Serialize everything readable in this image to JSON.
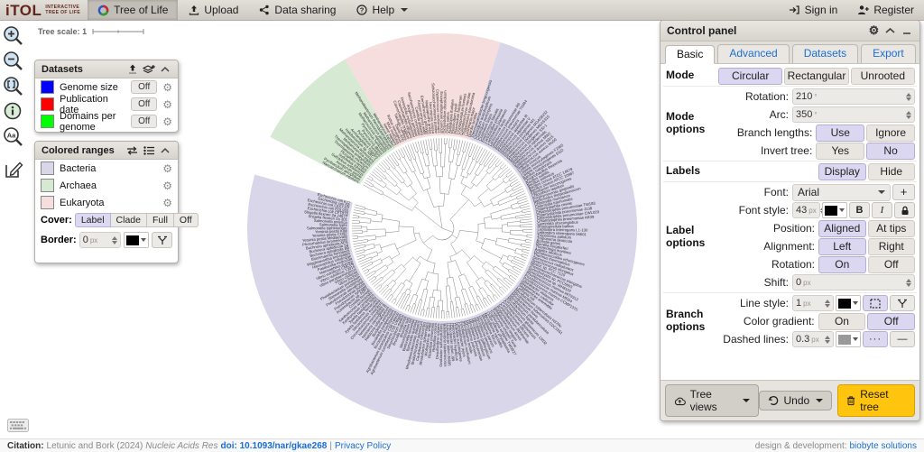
{
  "nav": {
    "logo": {
      "title": "iTOL",
      "subtitle1": "INTERACTIVE",
      "subtitle2": "TREE OF LIFE"
    },
    "menu": [
      {
        "label": "Tree of Life"
      },
      {
        "label": "Upload"
      },
      {
        "label": "Data sharing"
      },
      {
        "label": "Help"
      }
    ],
    "right": [
      {
        "label": "Sign in"
      },
      {
        "label": "Register"
      }
    ]
  },
  "tree_scale": {
    "label": "Tree scale:",
    "value": "1"
  },
  "datasets_panel": {
    "title": "Datasets",
    "items": [
      {
        "color": "#0000ff",
        "label": "Genome size",
        "state": "Off"
      },
      {
        "color": "#ff0000",
        "label": "Publication date",
        "state": "Off"
      },
      {
        "color": "#00ff00",
        "label": "Domains per genome",
        "state": "Off"
      }
    ]
  },
  "colored_ranges_panel": {
    "title": "Colored ranges",
    "ranges": [
      {
        "color": "#d9d6ea",
        "label": "Bacteria"
      },
      {
        "color": "#d5e9d3",
        "label": "Archaea"
      },
      {
        "color": "#f6dede",
        "label": "Eukaryota"
      }
    ],
    "cover": {
      "label": "Cover:",
      "options": [
        "Label",
        "Clade",
        "Full",
        "Off"
      ],
      "selected": "Label"
    },
    "border": {
      "label": "Border:",
      "value": "0",
      "unit": "px",
      "color": "#000000"
    }
  },
  "control_panel": {
    "title": "Control panel",
    "tabs": [
      "Basic",
      "Advanced",
      "Datasets",
      "Export"
    ],
    "active_tab": "Basic",
    "mode": {
      "label": "Mode",
      "options": [
        "Circular",
        "Rectangular",
        "Unrooted"
      ],
      "selected": "Circular"
    },
    "mode_options": {
      "label": "Mode options",
      "rotation": {
        "label": "Rotation:",
        "value": "210",
        "unit": "°"
      },
      "arc": {
        "label": "Arc:",
        "value": "350",
        "unit": "°"
      },
      "branch_lengths": {
        "label": "Branch lengths:",
        "options": [
          "Use",
          "Ignore"
        ],
        "selected": "Use"
      },
      "invert_tree": {
        "label": "Invert tree:",
        "options": [
          "Yes",
          "No"
        ],
        "selected": "No"
      }
    },
    "labels": {
      "label": "Labels",
      "options": [
        "Display",
        "Hide"
      ],
      "selected": "Display"
    },
    "label_options": {
      "label": "Label options",
      "font": {
        "label": "Font:",
        "value": "Arial",
        "add": "+"
      },
      "font_style": {
        "label": "Font style:",
        "value": "43",
        "unit": "px",
        "color": "#000000",
        "bold": "B",
        "italic": "I"
      },
      "position": {
        "label": "Position:",
        "options": [
          "Aligned",
          "At tips"
        ],
        "selected": "Aligned"
      },
      "alignment": {
        "label": "Alignment:",
        "options": [
          "Left",
          "Right"
        ],
        "selected": "Left"
      },
      "rotation": {
        "label": "Rotation:",
        "options": [
          "On",
          "Off"
        ],
        "selected": "On"
      },
      "shift": {
        "label": "Shift:",
        "value": "0",
        "unit": "px"
      }
    },
    "branch_options": {
      "label": "Branch options",
      "line_style": {
        "label": "Line style:",
        "value": "1",
        "unit": "px",
        "color": "#000000"
      },
      "color_gradient": {
        "label": "Color gradient:",
        "options": [
          "On",
          "Off"
        ],
        "selected": "Off"
      },
      "dashed_lines": {
        "label": "Dashed lines:",
        "value": "0.3",
        "unit": "px",
        "color": "#999999",
        "pattern_dots": "···",
        "pattern_solid": "—"
      }
    },
    "footer": {
      "tree_views": "Tree views",
      "undo": "Undo",
      "reset": "Reset tree"
    }
  },
  "citation": {
    "label": "Citation:",
    "authors": "Letunic and Bork (2024)",
    "journal": "Nucleic Acids Res",
    "doi": "doi: 10.1093/nar/gkae268",
    "separator": "|",
    "privacy": "Privacy Policy",
    "credit": "design & development:",
    "credit_link": "biobyte solutions"
  },
  "tree": {
    "rotation": 210,
    "arc": 350,
    "branch_color": "#5a5a5a",
    "label_color": "#2a2a2a",
    "domains": [
      {
        "name": "Bacteria",
        "color": "#d9d6ea",
        "species": [
          "Escherichia coli K12",
          "Escherichia coli O6",
          "Escherichia coli O157:H7",
          "Escherichia coli EDL933",
          "Escherichia coli CFT073",
          "Shigella flexneri 2a 2457T",
          "Shigella flexneri 2a 301",
          "Salmonella enterica",
          "Salmonella typhi",
          "Salmonella typhimurium",
          "Yersinia pestis KIM",
          "Yersinia pestis CO92",
          "Yersinia pestis Mediaevalis",
          "Photorhabdus luminescens",
          "Buchnera aphidicola APS",
          "Buchnera aphidicola Sg",
          "Buchnera aphidicola Bp",
          "Blochmannia floridanus",
          "Wigglesworthia brevipalpis",
          "Haemophilus influenzae",
          "Pasteurella multocida",
          "Haemophilus ducreyi",
          "Vibrio vulnificus CMCP6",
          "Vibrio vulnificus YJ016",
          "Vibrio parahaemolyticus",
          "Vibrio cholerae",
          "Vibrio fischeri",
          "Photobacterium profundum",
          "Shewanella oneidensis",
          "Pseudomonas aeruginosa",
          "Pseudomonas putida",
          "Pseudomonas syringae",
          "Acinetobacter sp. ADP1",
          "Coxiella burnetii",
          "Xanthomonas axonopodis",
          "Xanthomonas campestris",
          "Xylella fastidiosa 9a5c",
          "Xylella fastidiosa Temecula1",
          "Nitrosomonas europaea",
          "Chromobacterium violaceum",
          "Neisseria meningitidis A",
          "Neisseria meningitidis B",
          "Ralstonia solanacearum",
          "Bordetella pertussis",
          "Bordetella parapertussis",
          "Bordetella bronchiseptica",
          "Agrobacterium tumefaciens C58 Cereon",
          "Agrobacterium tumefaciens C58 UWash",
          "Sinorhizobium meliloti",
          "Brucella melitensis",
          "Brucella suis",
          "Mesorhizobium loti",
          "Bartonella henselae",
          "Bartonella quintana",
          "Rhodopseudomonas palustris",
          "Bradyrhizobium japonicum",
          "Caulobacter crescentus",
          "Rhodobacter sphaeroides",
          "Wolbachia sp. wMel",
          "Rickettsia prowazekii",
          "Rickettsia conorii",
          "Desulfovibrio vulgaris",
          "Geobacter sulfurreducens",
          "Bdellovibrio bacteriovorus",
          "Helicobacter pylori 26695",
          "Helicobacter pylori J99",
          "Helicobacter hepaticus",
          "Wolinella succinogenes",
          "Campylobacter jejuni",
          "Fusobacterium nucleatum",
          "Mycoplasma mobile",
          "Mycoplasma pulmonis",
          "Mycoplasma pneumoniae",
          "Mycoplasma genitalium",
          "Mycoplasma gallisepticum",
          "Mycoplasma penetrans",
          "Ureaplasma parvum",
          "Mesoplasma florum",
          "Mycoplasma mycoides",
          "Onion yellows phytoplasma",
          "Tropheryma whipplei TW08/27",
          "Tropheryma whipplei Twist",
          "Bifidobacterium longum",
          "Propionibacterium acnes",
          "Corynebacterium diphtheriae",
          "Corynebacterium efficiens",
          "Corynebacterium glutamicum",
          "Corynebacterium glutamicum 13032",
          "Mycobacterium leprae",
          "Mycobacterium paratuberculosis",
          "Mycobacterium bovis",
          "Mycobacterium tuberculosis CDC1551",
          "Mycobacterium tuberculosis H37Rv",
          "Leifsonia xyli",
          "Streptomyces avermitilis",
          "Streptomyces coelicolor",
          "Gloeobacter violaceus",
          "Prochlorococcus marinus CCMP1375",
          "Prochlorococcus marinus MED4",
          "Prochlorococcus marinus MIT9313",
          "Synechococcus sp. WH8102",
          "Synechocystis sp. PCC6803",
          "Thermosynechococcus elongatus",
          "Nostoc sp. PCC 7120",
          "Synechococcus elongatus",
          "Deinococcus radiodurans",
          "Thermus thermophilus",
          "Dehalococcoides ethenogenes",
          "Aquifex aeolicus",
          "Thermotoga maritima",
          "Borrelia burgdorferi",
          "Borrelia garinii",
          "Treponema denticola",
          "Treponema pallidum",
          "Leptospira interrogans 56601",
          "Leptospira interrogans L1-130",
          "Rhodopirellula baltica",
          "Gemmata obscuriglobus",
          "Chlamydophila pneumoniae AR39",
          "Chlamydophila pneumoniae CWL029",
          "Chlamydophila pneumoniae J138",
          "Chlamydophila pneumoniae TW183",
          "Chlamydophila caviae",
          "Chlamydia trachomatis",
          "Chlamydia muridarum",
          "Bacteroides thetaiotaomicron",
          "Porphyromonas gingivalis",
          "Chlorobium tepidum",
          "Fibrobacter succinogenes",
          "Bacillus cereus ATCC 10987",
          "Bacillus cereus ATCC 14579",
          "Bacillus anthracis",
          "Bacillus subtilis",
          "Oceanobacillus iheyensis",
          "Bacillus halodurans",
          "Listeria monocytogenes EGD",
          "Listeria monocytogenes F2365",
          "Listeria innocua",
          "Staphylococcus aureus Mu50",
          "Staphylococcus aureus N315",
          "Staphylococcus aureus MW2",
          "Staphylococcus epidermidis",
          "Streptococcus pyogenes SSI-1",
          "Streptococcus pyogenes MGAS315",
          "Streptococcus pyogenes MGAS8232",
          "Streptococcus pyogenes M1",
          "Streptococcus agalactiae V",
          "Streptococcus agalactiae III",
          "Streptococcus mutans",
          "Streptococcus pneumoniae TIGR4",
          "Streptococcus pneumoniae R6",
          "Lactococcus lactis",
          "Lactobacillus plantarum",
          "Lactobacillus johnsonii",
          "Enterococcus faecalis",
          "Clostridium tetani",
          "Clostridium perfringens",
          "Clostridium acetobutylicum",
          "Thermoanaerobacter tengcongensis"
        ]
      },
      {
        "name": "Eukaryota",
        "color": "#f6dede",
        "species": [
          "Giardia lamblia",
          "Leishmania major",
          "Thalassiosira pseudonana",
          "Cyanidioschyzon merolae",
          "Cryptosporidium hominis",
          "Plasmodium falciparum",
          "Plasmodium yoelii",
          "Arabidopsis thaliana",
          "Oryza sativa",
          "Dictyostelium discoideum",
          "Encephalitozoon cuniculi",
          "Cryptococcus neoformans",
          "Schizosaccharomyces pombe",
          "Neurospora crassa",
          "Magnaporthe grisea",
          "Eremothecium gossypii",
          "Kluyveromyces waltii",
          "Candida glabrata",
          "Saccharomyces cerevisiae",
          "Anopheles gambiae",
          "Drosophila melanogaster",
          "Caenorhabditis elegans",
          "Caenorhabditis briggsae",
          "Takifugu rubripes",
          "Danio rerio",
          "Rattus norvegicus",
          "Mus musculus",
          "Homo sapiens"
        ]
      },
      {
        "name": "Archaea",
        "color": "#d5e9d3",
        "species": [
          "Methanopyrus kandleri",
          "Methanobacterium thermautotrophicum",
          "Methanococcus jannaschii",
          "Methanococcus maripaludis",
          "Pyrococcus horikoshii",
          "Pyrococcus abyssi",
          "Pyrococcus furiosus",
          "Archaeoglobus fulgidus",
          "Halobacterium sp. NRC-1",
          "Methanosarcina acetivorans",
          "Methanosarcina mazei",
          "Thermoplasma acidophilum",
          "Thermoplasma volcanium",
          "Picrophilus torridus",
          "Sulfolobus tokodaii",
          "Sulfolobus solfataricus",
          "Aeropyrum pernix",
          "Pyrobaculum aerophilum",
          "Nanoarchaeum equitans"
        ]
      }
    ]
  }
}
